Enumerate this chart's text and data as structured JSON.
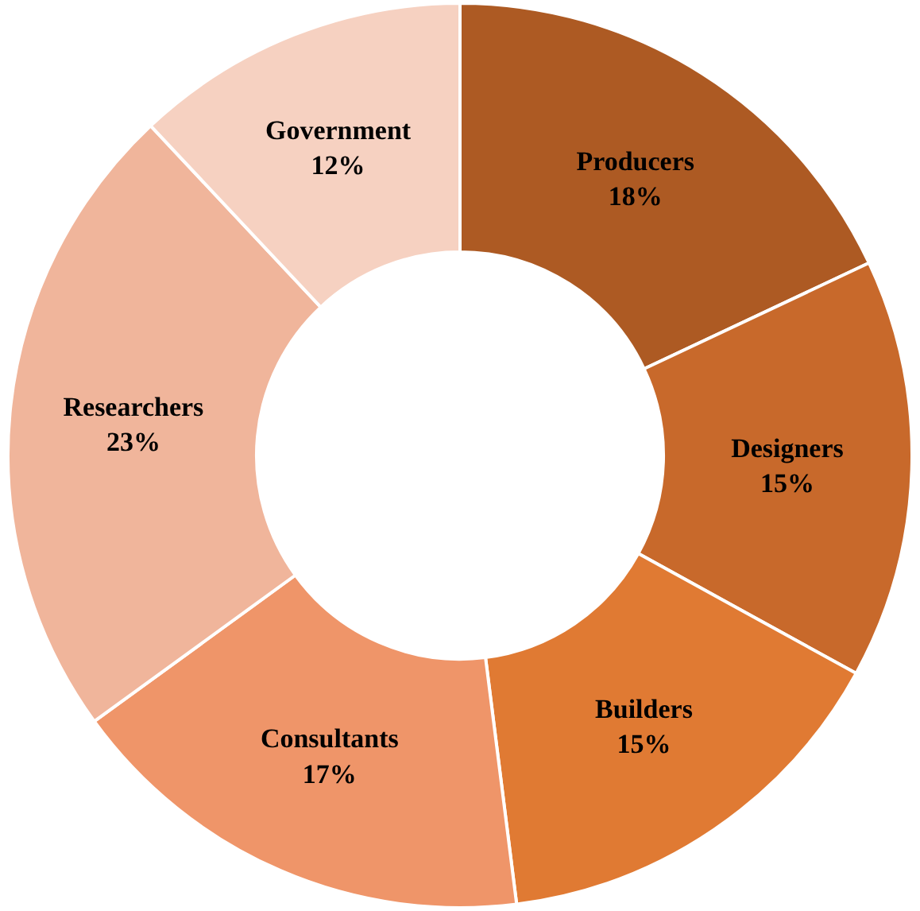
{
  "chart_data": {
    "type": "donut",
    "categories": [
      "Producers",
      "Designers",
      "Builders",
      "Consultants",
      "Researchers",
      "Government"
    ],
    "values": [
      18,
      15,
      15,
      17,
      23,
      12
    ],
    "value_labels": [
      "18%",
      "15%",
      "15%",
      "17%",
      "23%",
      "12%"
    ],
    "colors": [
      "#ad5a23",
      "#c8692b",
      "#e07a33",
      "#ef9569",
      "#f0b59b",
      "#f6d1c1"
    ],
    "legend": false
  }
}
